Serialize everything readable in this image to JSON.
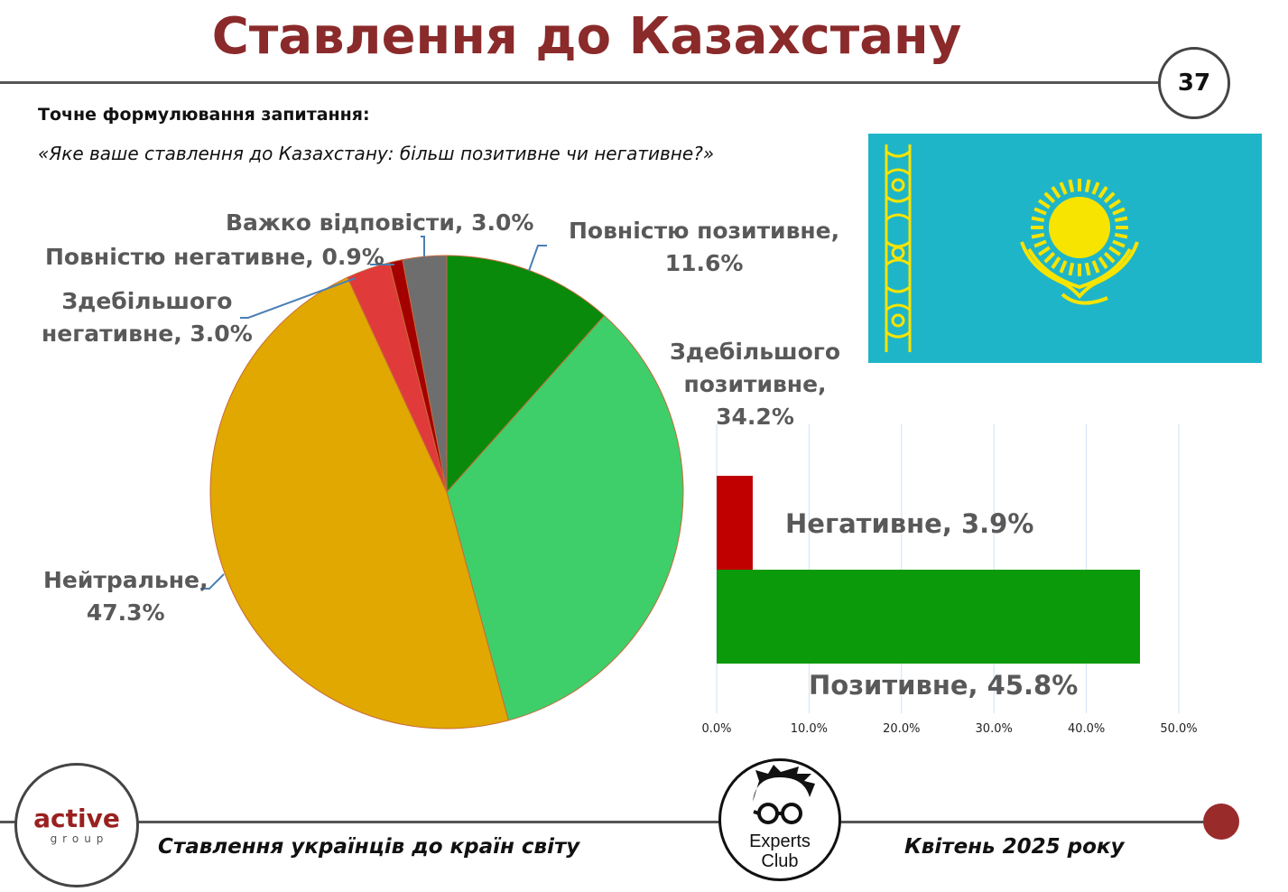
{
  "header": {
    "title": "Ставлення до Казахстану",
    "page_number": "37"
  },
  "question": {
    "label": "Точне формулювання запитання:",
    "text": "«Яке ваше ставлення до Казахстану: більш позитивне чи негативне?»"
  },
  "flag": {
    "name": "kazakhstan-flag",
    "color_bg": "#1fb5c8",
    "color_emblem": "#f7e400"
  },
  "chart_data": [
    {
      "type": "pie",
      "start_angle_deg": 0,
      "direction": "clockwise",
      "slices": [
        {
          "label_lines": [
            "Повністю позитивне,",
            "11.6%"
          ],
          "value": 11.6,
          "color": "#0a8a0a"
        },
        {
          "label_lines": [
            "Здебільшого",
            "позитивне,",
            "34.2%"
          ],
          "value": 34.2,
          "color": "#3ecf6a"
        },
        {
          "label_lines": [
            "Нейтральне,",
            "47.3%"
          ],
          "value": 47.3,
          "color": "#e0a800"
        },
        {
          "label_lines": [
            "Здебільшого",
            "негативне, 3.0%"
          ],
          "value": 3.0,
          "color": "#e03a3a"
        },
        {
          "label_lines": [
            "Повністю негативне, 0.9%"
          ],
          "value": 0.9,
          "color": "#a40000"
        },
        {
          "label_lines": [
            "Важко відповісти, 3.0%"
          ],
          "value": 3.0,
          "color": "#6e6e6e"
        }
      ]
    },
    {
      "type": "bar",
      "orientation": "horizontal",
      "categories": [
        "Негативне, 3.9%",
        "Позитивне, 45.8%"
      ],
      "values": [
        3.9,
        45.8
      ],
      "colors": [
        "#c00000",
        "#0a9a0a"
      ],
      "x_ticks": [
        "0.0%",
        "10.0%",
        "20.0%",
        "30.0%",
        "40.0%",
        "50.0%"
      ],
      "xlim": [
        0,
        50
      ],
      "grid": true
    }
  ],
  "footer": {
    "left_text": "Ставлення українців до країн світу",
    "right_text": "Квітень 2025 року",
    "active_logo_word": "active",
    "active_logo_sub": "group",
    "experts_logo_line1": "Experts",
    "experts_logo_line2": "Club"
  }
}
